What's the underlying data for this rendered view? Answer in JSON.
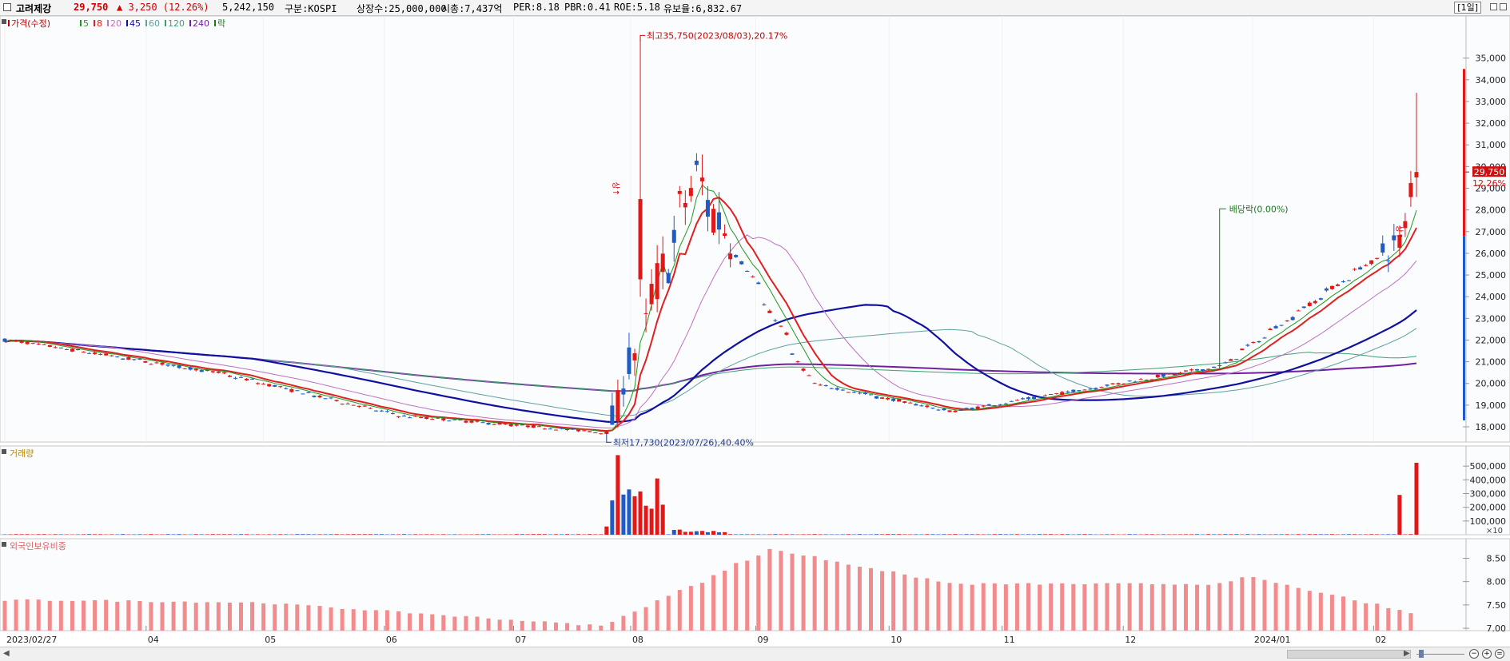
{
  "header": {
    "name": "고려제강",
    "price": "29,750",
    "change": "▲ 3,250 (12.26%)",
    "volume": "5,242,150",
    "market": "구분:KOSPI",
    "listed": "상장수:25,000,000",
    "mcap": "시총:7,437억",
    "per": "PER:8.18",
    "pbr": "PBR:0.41",
    "roe": "ROE:5.18",
    "float": "유보율:6,832.67",
    "period": "[1일]"
  },
  "legends": {
    "price": [
      {
        "label": "가격(수정)",
        "color": "#c00000"
      },
      {
        "label": "5",
        "color": "#1f9a1f"
      },
      {
        "label": "8",
        "color": "#e02020"
      },
      {
        "label": "20",
        "color": "#c070c0"
      },
      {
        "label": "45",
        "color": "#1010a0"
      },
      {
        "label": "60",
        "color": "#60a0a0"
      },
      {
        "label": "120",
        "color": "#3ca06e"
      },
      {
        "label": "240",
        "color": "#7020a0"
      },
      {
        "label": "락",
        "color": "#1a7a1a"
      }
    ],
    "volume": "거래량",
    "foreign": "외국인보유비중"
  },
  "annotations": {
    "high": "최고35,750(2023/08/03),20.17%",
    "low": "최저17,730(2023/07/26),40.40%",
    "dividend": "배당락(0.00%)",
    "limit_up": "상↑",
    "last_price": "29,750",
    "last_pct": "12.26%",
    "vol_unit": "×10"
  },
  "colors": {
    "up": "#e01818",
    "down": "#1e5bc6",
    "foreign_bar": "#f28c8c",
    "ma5": "#1f9a1f",
    "ma8": "#e02020",
    "ma20": "#c070c0",
    "ma45": "#1010a0",
    "ma60": "#60a0a0",
    "ma120": "#3ca06e",
    "ma240": "#7020a0"
  },
  "chart_data": [
    {
      "type": "candlestick",
      "title": "가격(수정)",
      "y_ticks": [
        18000,
        19000,
        20000,
        21000,
        22000,
        23000,
        24000,
        25000,
        26000,
        27000,
        28000,
        29000,
        30000,
        31000,
        32000,
        33000,
        34000,
        35000
      ],
      "ylim": [
        17300,
        36500
      ],
      "x_tick_labels": [
        "2023/02/27",
        "04",
        "05",
        "06",
        "07",
        "08",
        "09",
        "10",
        "11",
        "12",
        "2024/01",
        "02"
      ],
      "x_tick_dates": [
        "2023-02-27",
        "2023-04-03",
        "2023-05-02",
        "2023-06-01",
        "2023-07-03",
        "2023-08-01",
        "2023-09-01",
        "2023-10-04",
        "2023-11-01",
        "2023-12-01",
        "2024-01-02",
        "2024-02-01"
      ],
      "first_date": "2023-02-27",
      "last_date": "2024-02-13",
      "key_points": [
        {
          "date": "2023-02-27",
          "close": 22000
        },
        {
          "date": "2023-04-20",
          "close": 20500
        },
        {
          "date": "2023-06-05",
          "close": 18500
        },
        {
          "date": "2023-07-26",
          "close": 17730,
          "note": "최저"
        },
        {
          "date": "2023-08-03",
          "high": 35750,
          "note": "최고"
        },
        {
          "date": "2023-08-17",
          "close": 29500
        },
        {
          "date": "2023-09-15",
          "close": 20000
        },
        {
          "date": "2023-10-20",
          "close": 18700
        },
        {
          "date": "2023-12-26",
          "close": 20800
        },
        {
          "date": "2024-02-08",
          "close": 26500
        },
        {
          "date": "2024-02-13",
          "open": 29500,
          "close": 29750,
          "high": 33400,
          "low": 28600
        }
      ],
      "ma_lines": [
        "5",
        "8",
        "20",
        "45",
        "60",
        "120",
        "240"
      ]
    },
    {
      "type": "bar",
      "title": "거래량",
      "unit": "×10",
      "y_ticks": [
        100000,
        200000,
        300000,
        400000,
        500000
      ],
      "ylim": [
        0,
        600000
      ],
      "peaks": [
        {
          "date": "2023-07-26",
          "value": 60000
        },
        {
          "date": "2023-07-27",
          "value": 250000
        },
        {
          "date": "2023-07-28",
          "value": 580000
        },
        {
          "date": "2023-08-01",
          "value": 330000
        },
        {
          "date": "2023-08-08",
          "value": 410000
        },
        {
          "date": "2024-02-08",
          "value": 290000
        },
        {
          "date": "2024-02-13",
          "value": 524215
        }
      ]
    },
    {
      "type": "bar",
      "title": "외국인보유비중",
      "y_ticks": [
        7.0,
        7.5,
        8.0,
        8.5
      ],
      "ylim": [
        6.95,
        8.85
      ],
      "key_points": [
        {
          "date": "2023-03-15",
          "value": 7.6
        },
        {
          "date": "2023-05-01",
          "value": 7.55
        },
        {
          "date": "2023-07-25",
          "value": 7.05
        },
        {
          "date": "2023-09-05",
          "value": 8.7
        },
        {
          "date": "2023-10-20",
          "value": 7.95
        },
        {
          "date": "2023-12-26",
          "value": 7.95
        },
        {
          "date": "2024-01-02",
          "value": 8.1
        },
        {
          "date": "2024-02-13",
          "value": 7.3
        }
      ]
    }
  ]
}
